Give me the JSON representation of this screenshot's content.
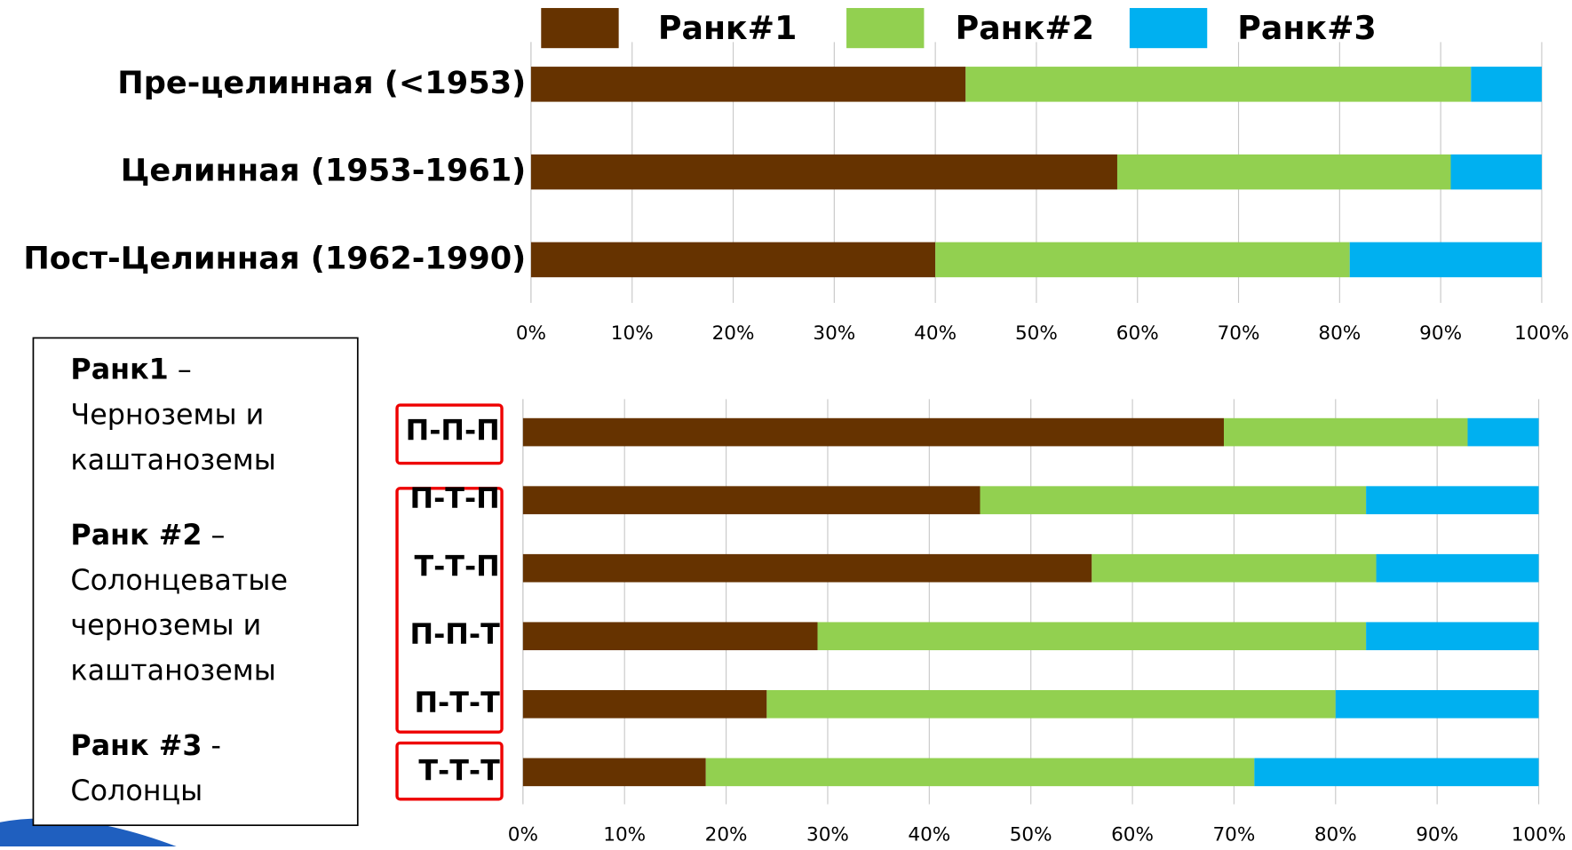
{
  "chart_data": [
    {
      "type": "stacked-bar-horizontal",
      "categories": [
        "Пре-целинная (<1953)",
        "Целинная (1953-1961)",
        "Пост-Целинная (1962-1990)"
      ],
      "series": [
        {
          "name": "Ранк#1",
          "color": "#663300",
          "values": [
            43,
            58,
            40
          ]
        },
        {
          "name": "Ранк#2",
          "color": "#92d050",
          "values": [
            50,
            33,
            41
          ]
        },
        {
          "name": "Ранк#3",
          "color": "#00b0f0",
          "values": [
            7,
            9,
            19
          ]
        }
      ],
      "xlim": [
        0,
        100
      ],
      "xticks": [
        {
          "value": 0,
          "label": "0%"
        },
        {
          "value": 10,
          "label": "10%"
        },
        {
          "value": 20,
          "label": "20%"
        },
        {
          "value": 30,
          "label": "30%"
        },
        {
          "value": 40,
          "label": "40%"
        },
        {
          "value": 50,
          "label": "50%"
        },
        {
          "value": 60,
          "label": "60%"
        },
        {
          "value": 70,
          "label": "70%"
        },
        {
          "value": 80,
          "label": "80%"
        },
        {
          "value": 90,
          "label": "90%"
        },
        {
          "value": 100,
          "label": "100%"
        }
      ],
      "grid": true
    },
    {
      "type": "stacked-bar-horizontal",
      "categories": [
        "П-П-П",
        "П-Т-П",
        "Т-Т-П",
        "П-П-Т",
        "П-Т-Т",
        "Т-Т-Т"
      ],
      "series": [
        {
          "color": "#663300",
          "values": [
            69,
            45,
            56,
            29,
            24,
            18
          ]
        },
        {
          "color": "#92d050",
          "values": [
            24,
            38,
            28,
            54,
            56,
            54
          ]
        },
        {
          "color": "#00b0f0",
          "values": [
            7,
            17,
            16,
            17,
            20,
            28
          ]
        }
      ],
      "xlim": [
        0,
        100
      ],
      "xticks": [
        {
          "value": 0,
          "label": "0%"
        },
        {
          "value": 10,
          "label": "10%"
        },
        {
          "value": 20,
          "label": "20%"
        },
        {
          "value": 30,
          "label": "30%"
        },
        {
          "value": 40,
          "label": "40%"
        },
        {
          "value": 50,
          "label": "50%"
        },
        {
          "value": 60,
          "label": "60%"
        },
        {
          "value": 70,
          "label": "70%"
        },
        {
          "value": 80,
          "label": "80%"
        },
        {
          "value": 90,
          "label": "90%"
        },
        {
          "value": 100,
          "label": "100%"
        }
      ],
      "grid": true
    }
  ],
  "legend_box": [
    {
      "term": "Ранк1",
      "sep": " –",
      "lines": [
        "Черноземы и",
        "каштаноземы"
      ]
    },
    {
      "term": "Ранк #2",
      "sep": " –",
      "lines": [
        "Солонцеватые",
        "черноземы и",
        "каштаноземы"
      ]
    },
    {
      "term": "Ранк #3",
      "sep": " -",
      "lines": [
        "Солонцы"
      ]
    }
  ]
}
